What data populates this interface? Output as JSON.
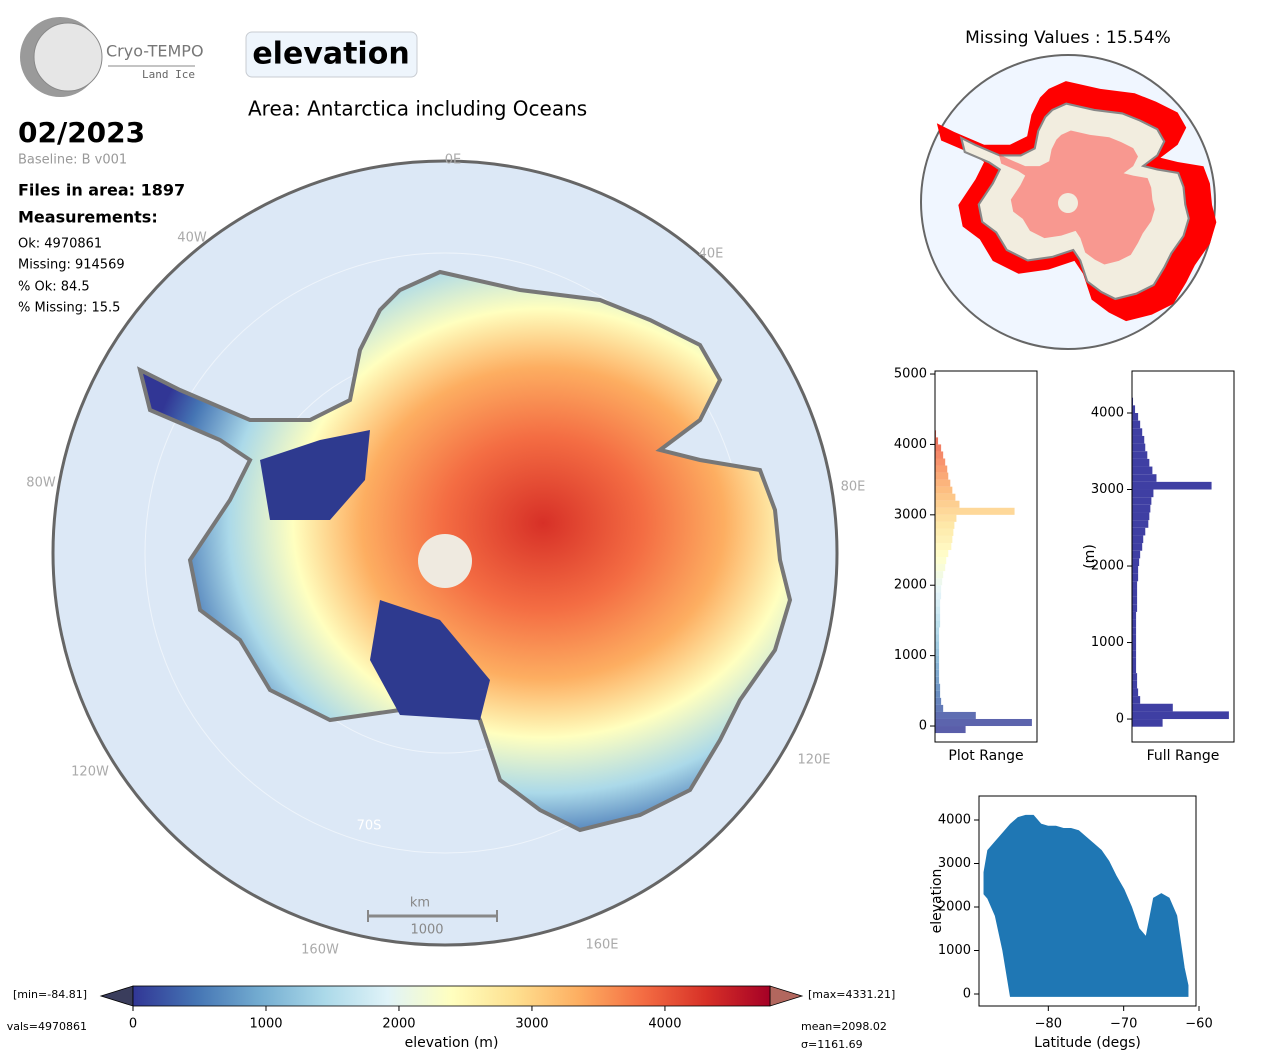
{
  "header": {
    "logo_title": "Cryo-TEMPO",
    "logo_sub": "Land Ice",
    "variable": "elevation",
    "area": "Area: Antarctica including Oceans",
    "date": "02/2023",
    "baseline": "Baseline: B v001",
    "files": "Files in area: 1897",
    "measurements_title": "Measurements:",
    "ok": "Ok: 4970861",
    "missing": "Missing: 914569",
    "pct_ok": "% Ok: 84.5",
    "pct_missing": "% Missing: 15.5"
  },
  "map": {
    "labels": [
      "0E",
      "40E",
      "80E",
      "120E",
      "160E",
      "160W",
      "120W",
      "80W",
      "40W",
      "70S"
    ],
    "scalebar_unit": "km",
    "scalebar_length": "1000"
  },
  "missing_map": {
    "title": "Missing Values : 15.54%"
  },
  "chart_data": [
    {
      "type": "histogram",
      "orientation": "horizontal",
      "xlabel": "Plot Range",
      "color_by_colormap": true,
      "bins": [
        -100,
        0,
        100,
        200,
        300,
        400,
        500,
        600,
        700,
        800,
        900,
        1000,
        1100,
        1200,
        1300,
        1400,
        1500,
        1600,
        1700,
        1800,
        1900,
        2000,
        2100,
        2200,
        2300,
        2400,
        2500,
        2600,
        2700,
        2800,
        2900,
        3000,
        3100,
        3200,
        3300,
        3400,
        3500,
        3600,
        3700,
        3800,
        3900,
        4000,
        4100,
        4200
      ],
      "values": [
        30,
        95,
        40,
        8,
        6,
        5,
        5,
        4,
        4,
        4,
        4,
        4,
        4,
        4,
        4,
        5,
        5,
        5,
        5,
        6,
        6,
        7,
        8,
        10,
        11,
        13,
        16,
        17,
        18,
        19,
        21,
        78,
        24,
        20,
        17,
        15,
        13,
        12,
        10,
        8,
        6,
        3,
        1
      ],
      "xlim": [
        0,
        100
      ],
      "ylim": [
        -227,
        5043
      ],
      "yticks": [
        0,
        1000,
        2000,
        3000,
        4000,
        5000
      ]
    },
    {
      "type": "histogram",
      "orientation": "horizontal",
      "xlabel": "Full Range",
      "ylabel": "(m)",
      "color": "#3f3fa3",
      "bins": [
        -100,
        0,
        100,
        200,
        300,
        400,
        500,
        600,
        700,
        800,
        900,
        1000,
        1100,
        1200,
        1300,
        1400,
        1500,
        1600,
        1700,
        1800,
        1900,
        2000,
        2100,
        2200,
        2300,
        2400,
        2500,
        2600,
        2700,
        2800,
        2900,
        3000,
        3100,
        3200,
        3300,
        3400,
        3500,
        3600,
        3700,
        3800,
        3900,
        4000,
        4100,
        4200
      ],
      "values": [
        30,
        95,
        40,
        8,
        6,
        5,
        5,
        4,
        4,
        4,
        4,
        4,
        4,
        4,
        4,
        5,
        5,
        5,
        5,
        6,
        6,
        7,
        8,
        10,
        11,
        13,
        16,
        17,
        18,
        19,
        21,
        78,
        24,
        20,
        17,
        15,
        13,
        12,
        10,
        8,
        6,
        3,
        1
      ],
      "xlim": [
        0,
        100
      ],
      "ylim": [
        -300,
        4549
      ],
      "yticks": [
        0,
        1000,
        2000,
        3000,
        4000
      ]
    },
    {
      "type": "scatter",
      "xlabel": "Latitude (degs)",
      "ylabel": "elevation",
      "color": "#1f77b4",
      "x": [
        -88.5,
        -88,
        -87,
        -86,
        -85,
        -84,
        -83,
        -82,
        -81,
        -80,
        -79,
        -78,
        -77,
        -76,
        -75,
        -74,
        -73,
        -72,
        -71,
        -70,
        -69,
        -68,
        -67,
        -66,
        -65,
        -64,
        -63,
        -62,
        -61.5
      ],
      "y_max": [
        2800,
        3300,
        3500,
        3700,
        3900,
        4050,
        4100,
        4100,
        3900,
        3850,
        3850,
        3800,
        3800,
        3750,
        3600,
        3450,
        3300,
        3050,
        2700,
        2400,
        2000,
        1500,
        1300,
        2200,
        2300,
        2200,
        1800,
        600,
        200
      ],
      "y_min": [
        2300,
        2200,
        1800,
        1000,
        -50,
        -50,
        -50,
        -50,
        -50,
        -50,
        -50,
        -50,
        -50,
        -50,
        -50,
        -50,
        -50,
        -50,
        -50,
        -50,
        -50,
        -50,
        -50,
        -50,
        -50,
        -50,
        -50,
        -50,
        -50
      ],
      "xlim": [
        -89.2,
        -60.4
      ],
      "ylim": [
        -276,
        4552
      ],
      "xticks": [
        {
          "value": -80,
          "label": "−80"
        },
        {
          "value": -70,
          "label": "−70"
        },
        {
          "value": -60,
          "label": "−60"
        }
      ],
      "yticks": [
        0,
        1000,
        2000,
        3000,
        4000
      ]
    },
    {
      "type": "colorbar",
      "xlabel": "elevation (m)",
      "xlim": [
        0,
        4790
      ],
      "xticks": [
        0,
        1000,
        2000,
        3000,
        4000
      ],
      "colormap": [
        "#313695",
        "#4575b4",
        "#74add1",
        "#abd9e9",
        "#e0f3f8",
        "#ffffbf",
        "#fee090",
        "#fdae61",
        "#f46d43",
        "#d73027",
        "#a50026"
      ],
      "under_color": "#3a3d5c",
      "over_color": "#b2675e",
      "min_label": "[min=-84.81]",
      "max_label": "[max=4331.21]",
      "nvals_label": "vals=4970861",
      "mean_label": "mean=2098.02",
      "std_label": "σ=1161.69"
    }
  ]
}
